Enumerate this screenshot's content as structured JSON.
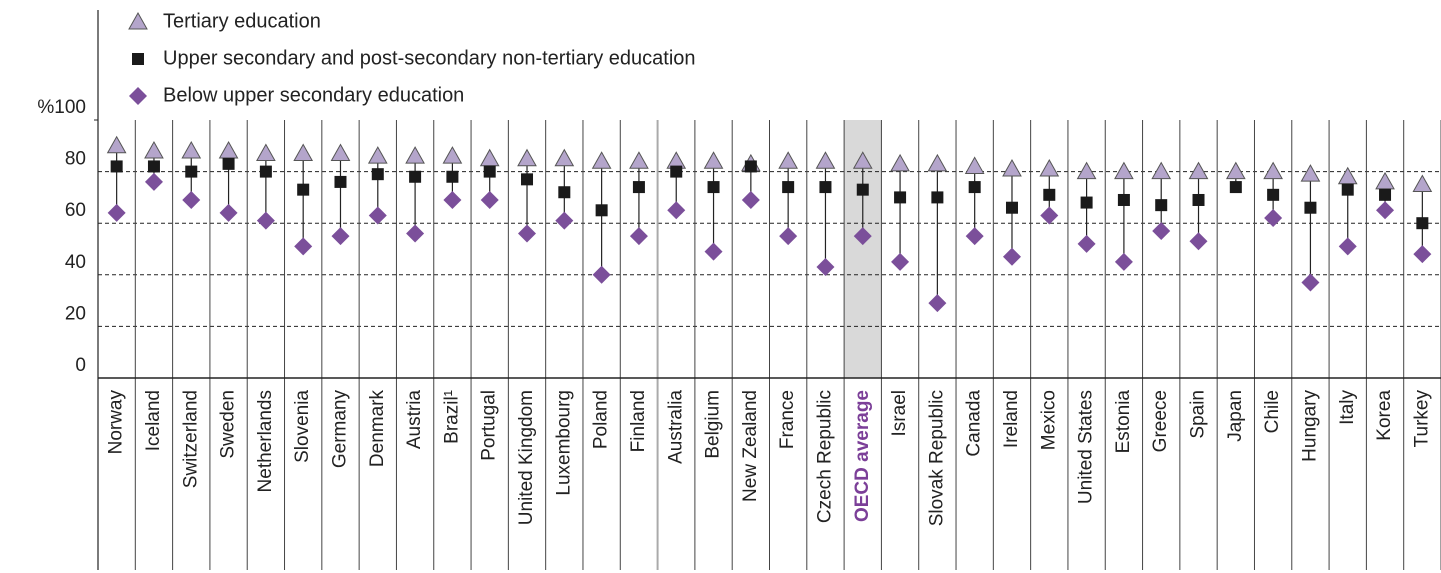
{
  "chart_data": {
    "type": "dot-range",
    "categories": [
      "Norway",
      "Iceland",
      "Switzerland",
      "Sweden",
      "Netherlands",
      "Slovenia",
      "Germany",
      "Denmark",
      "Austria",
      "Brazil¹",
      "Portugal",
      "United Kingdom",
      "Luxembourg",
      "Poland",
      "Finland",
      "Australia",
      "Belgium",
      "New Zealand",
      "France",
      "Czech Republic",
      "OECD average",
      "Israel",
      "Slovak Republic",
      "Canada",
      "Ireland",
      "Mexico",
      "United States",
      "Estonia",
      "Greece",
      "Spain",
      "Japan",
      "Chile",
      "Hungary",
      "Italy",
      "Korea",
      "Turkey"
    ],
    "series": [
      {
        "name": "Tertiary education",
        "color": "#b4a5cb",
        "marker": "triangle",
        "values": [
          90,
          88,
          88,
          88,
          87,
          87,
          87,
          86,
          86,
          86,
          85,
          85,
          85,
          84,
          84,
          84,
          84,
          83,
          84,
          84,
          84,
          83,
          83,
          82,
          81,
          81,
          80,
          80,
          80,
          80,
          80,
          80,
          79,
          78,
          76,
          75
        ]
      },
      {
        "name": "Upper secondary and post-secondary non-tertiary education",
        "color": "#1a1a1a",
        "marker": "square",
        "values": [
          82,
          82,
          80,
          83,
          80,
          73,
          76,
          79,
          78,
          78,
          80,
          77,
          72,
          65,
          74,
          80,
          74,
          82,
          74,
          74,
          73,
          70,
          70,
          74,
          66,
          71,
          68,
          69,
          67,
          69,
          74,
          71,
          66,
          73,
          71,
          60
        ]
      },
      {
        "name": "Below upper secondary education",
        "color": "#7b4f9a",
        "marker": "diamond",
        "values": [
          64,
          76,
          69,
          64,
          61,
          51,
          55,
          63,
          56,
          69,
          69,
          56,
          61,
          40,
          55,
          65,
          49,
          69,
          55,
          43,
          55,
          45,
          29,
          55,
          47,
          63,
          52,
          45,
          57,
          53,
          null,
          62,
          37,
          51,
          65,
          48
        ]
      }
    ],
    "highlight_index": 20,
    "highlight_color": "#d9d9d9",
    "highlight_label_color": "#7b3f98",
    "ylim": [
      0,
      100
    ],
    "yticks": [
      0,
      20,
      40,
      60,
      {
        "value": 80,
        "label": "80"
      },
      {
        "value": 100,
        "label": "%100"
      }
    ],
    "grid": true
  }
}
